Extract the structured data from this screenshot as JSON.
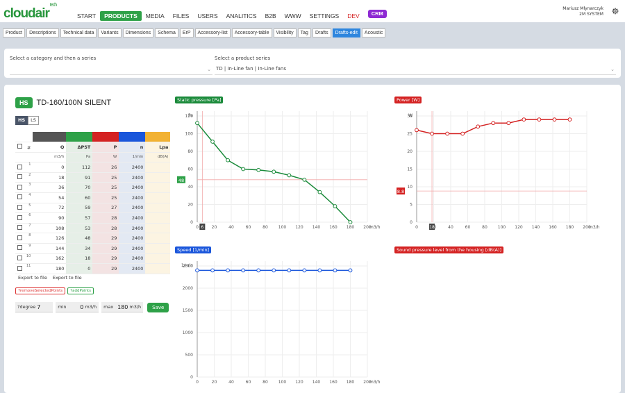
{
  "brand": {
    "logo": "cloudair",
    "logo_sup": "tech"
  },
  "main_nav": [
    {
      "label": "START",
      "active": false
    },
    {
      "label": "PRODUCTS",
      "active": true
    },
    {
      "label": "MEDIA",
      "active": false
    },
    {
      "label": "FILES",
      "active": false
    },
    {
      "label": "USERS",
      "active": false
    },
    {
      "label": "ANALITICS",
      "active": false
    },
    {
      "label": "B2B",
      "active": false
    },
    {
      "label": "WWW",
      "active": false
    },
    {
      "label": "SETTINGS",
      "active": false
    },
    {
      "label": "DEV",
      "active": false
    },
    {
      "label": "CRM",
      "active": false
    }
  ],
  "user": {
    "name": "Mariusz Młynarczyk",
    "company": "2M SYSTEM"
  },
  "sub_nav": [
    "Product",
    "Descriptions",
    "Technical data",
    "Variants",
    "Dimensions",
    "Schema",
    "ErP",
    "Accessory-list",
    "Accessory-table",
    "Visibility",
    "Tag",
    "Drafts",
    "Drafts-edit",
    "Acoustic"
  ],
  "sub_nav_active": "Drafts-edit",
  "selectors": {
    "category_label": "Select a category and then a series",
    "category_value": "",
    "series_label": "Select a product series",
    "series_value": "TD | In-Line fan | In-Line fans"
  },
  "product": {
    "badge": "HS",
    "name": "TD-160/100N SILENT"
  },
  "toggle": {
    "hs": "HS",
    "ls": "LS"
  },
  "table": {
    "headers": [
      "#",
      "Q",
      "ΔPST",
      "P",
      "n",
      "Lpa"
    ],
    "units": [
      "m3/h",
      "Pa",
      "W",
      "1/min",
      "dB(A)"
    ],
    "rows": [
      {
        "i": "1",
        "q": "0",
        "dp": "112",
        "p": "26",
        "n": "2400",
        "lpa": ""
      },
      {
        "i": "2",
        "q": "18",
        "dp": "91",
        "p": "25",
        "n": "2400",
        "lpa": ""
      },
      {
        "i": "3",
        "q": "36",
        "dp": "70",
        "p": "25",
        "n": "2400",
        "lpa": ""
      },
      {
        "i": "4",
        "q": "54",
        "dp": "60",
        "p": "25",
        "n": "2400",
        "lpa": ""
      },
      {
        "i": "5",
        "q": "72",
        "dp": "59",
        "p": "27",
        "n": "2400",
        "lpa": ""
      },
      {
        "i": "6",
        "q": "90",
        "dp": "57",
        "p": "28",
        "n": "2400",
        "lpa": ""
      },
      {
        "i": "7",
        "q": "108",
        "dp": "53",
        "p": "28",
        "n": "2400",
        "lpa": ""
      },
      {
        "i": "8",
        "q": "126",
        "dp": "48",
        "p": "29",
        "n": "2400",
        "lpa": ""
      },
      {
        "i": "9",
        "q": "144",
        "dp": "34",
        "p": "29",
        "n": "2400",
        "lpa": ""
      },
      {
        "i": "10",
        "q": "162",
        "dp": "18",
        "p": "29",
        "n": "2400",
        "lpa": ""
      },
      {
        "i": "11",
        "q": "180",
        "dp": "0",
        "p": "29",
        "n": "2400",
        "lpa": ""
      }
    ]
  },
  "export": {
    "a": "Export to file",
    "b": "Export to file"
  },
  "actions": {
    "remove": "?removeSelectedPoints",
    "add": "?addPoints"
  },
  "params": {
    "degree_label": "?degree",
    "degree": "7",
    "min_label": "min",
    "min": "0",
    "min_unit": "m3/h",
    "max_label": "max",
    "max": "180",
    "max_unit": "m3/h",
    "save": "Save"
  },
  "colors": {
    "green": "#2ea148",
    "red": "#d42222",
    "blue": "#1a56db",
    "purple": "#8e2ad3",
    "active_tab": "#2e86de"
  },
  "chart_data": [
    {
      "type": "line",
      "title": "Static pressure [Pa]",
      "ylabel": "Pa",
      "xlabel": "m3/h",
      "x": [
        0,
        18,
        36,
        54,
        72,
        90,
        108,
        126,
        144,
        162,
        180
      ],
      "values": [
        112,
        91,
        70,
        60,
        59,
        57,
        53,
        48,
        34,
        18,
        0
      ],
      "xlim": [
        0,
        200
      ],
      "ylim": [
        0,
        120
      ],
      "xticks": [
        0,
        20,
        40,
        60,
        80,
        100,
        120,
        140,
        160,
        180,
        200
      ],
      "yticks": [
        0,
        20,
        40,
        60,
        80,
        100,
        120
      ],
      "marker": {
        "x": 6,
        "y": 48
      },
      "color": "#1a8a3a"
    },
    {
      "type": "line",
      "title": "Power [W]",
      "ylabel": "W",
      "xlabel": "m3/h",
      "x": [
        0,
        18,
        36,
        54,
        72,
        90,
        108,
        126,
        144,
        162,
        180
      ],
      "values": [
        26,
        25,
        25,
        25,
        27,
        28,
        28,
        29,
        29,
        29,
        29
      ],
      "xlim": [
        0,
        200
      ],
      "ylim": [
        0,
        30
      ],
      "xticks": [
        0,
        20,
        40,
        60,
        80,
        100,
        120,
        140,
        160,
        180,
        200
      ],
      "yticks": [
        0,
        5,
        10,
        15,
        20,
        25,
        30
      ],
      "marker": {
        "x": 18,
        "y": 8.8
      },
      "color": "#d42222"
    },
    {
      "type": "line",
      "title": "Speed [1/min]",
      "ylabel": "1/min",
      "xlabel": "m3/h",
      "x": [
        0,
        18,
        36,
        54,
        72,
        90,
        108,
        126,
        144,
        162,
        180
      ],
      "values": [
        2400,
        2400,
        2400,
        2400,
        2400,
        2400,
        2400,
        2400,
        2400,
        2400,
        2400
      ],
      "xlim": [
        0,
        200
      ],
      "ylim": [
        0,
        2500
      ],
      "xticks": [
        0,
        20,
        40,
        60,
        80,
        100,
        120,
        140,
        160,
        180,
        200
      ],
      "yticks": [
        0,
        500,
        1000,
        1500,
        2000,
        2500
      ],
      "color": "#1a56db"
    },
    {
      "type": "line",
      "title": "Sound pressure level from the housing [dB(A)]",
      "x": [],
      "values": [],
      "color": "#d42222"
    }
  ]
}
